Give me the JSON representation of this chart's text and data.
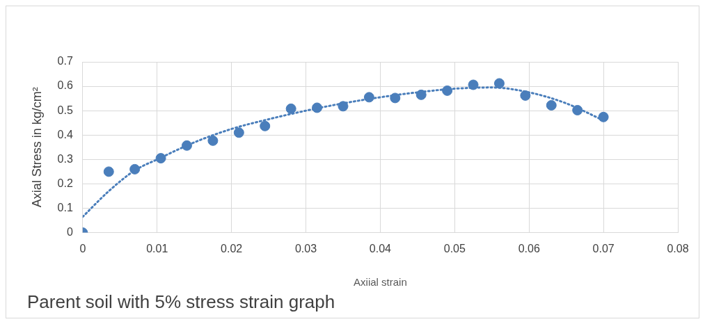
{
  "chart_data": {
    "type": "scatter",
    "title": "Parent soil with 5% stress strain graph",
    "xlabel": "Axiial strain",
    "ylabel": "Axial Stress in kg/cm²",
    "x": [
      0,
      0.0035,
      0.007,
      0.0105,
      0.014,
      0.0175,
      0.021,
      0.0245,
      0.028,
      0.0315,
      0.035,
      0.0385,
      0.042,
      0.0455,
      0.049,
      0.0525,
      0.056,
      0.0595,
      0.063,
      0.0665,
      0.07
    ],
    "series": [
      {
        "color": "#4a7ebb",
        "values": [
          0,
          0.25,
          0.26,
          0.305,
          0.357,
          0.377,
          0.41,
          0.437,
          0.508,
          0.512,
          0.518,
          0.555,
          0.552,
          0.565,
          0.582,
          0.606,
          0.612,
          0.562,
          0.522,
          0.502,
          0.474
        ]
      },
      {
        "type": "line",
        "line_style": "dotted",
        "marker": "none",
        "color": "#4a7ebb",
        "x": [
          0,
          0.0035,
          0.007,
          0.01,
          0.015,
          0.02,
          0.025,
          0.03,
          0.035,
          0.04,
          0.045,
          0.05,
          0.055,
          0.06,
          0.065,
          0.07
        ],
        "values": [
          0.065,
          0.17,
          0.255,
          0.3,
          0.37,
          0.425,
          0.465,
          0.5,
          0.53,
          0.555,
          0.575,
          0.59,
          0.595,
          0.575,
          0.53,
          0.46
        ]
      }
    ],
    "marker": "circle",
    "xlim": [
      0,
      0.08
    ],
    "xticks": [
      0,
      0.01,
      0.02,
      0.03,
      0.04,
      0.05,
      0.06,
      0.07,
      0.08
    ],
    "ylim": [
      0,
      0.7
    ],
    "yticks": [
      0,
      0.1,
      0.2,
      0.3,
      0.4,
      0.5,
      0.6,
      0.7
    ],
    "grid": true,
    "legend": false
  }
}
